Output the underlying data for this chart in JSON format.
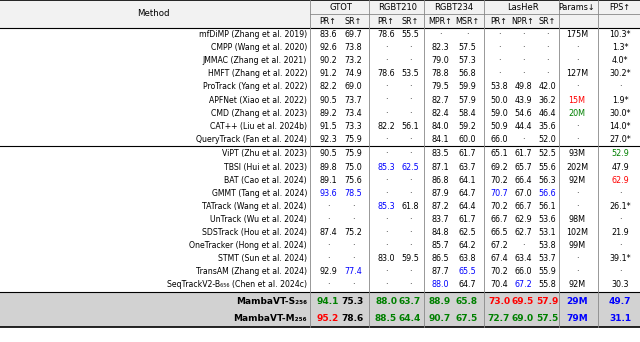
{
  "rows_group1": [
    [
      "mfDiMP (Zhang et al. 2019)",
      "83.6",
      "69.7",
      "78.6",
      "55.5",
      "-",
      "-",
      "-",
      "-",
      "-",
      "175M",
      "10.3*"
    ],
    [
      "CMPP (Wang et al. 2020)",
      "92.6",
      "73.8",
      "-",
      "-",
      "82.3",
      "57.5",
      "-",
      "-",
      "-",
      "-",
      "1.3*"
    ],
    [
      "JMMAC (Zhang et al. 2021)",
      "90.2",
      "73.2",
      "-",
      "-",
      "79.0",
      "57.3",
      "-",
      "-",
      "-",
      "-",
      "4.0*"
    ],
    [
      "HMFT (Zhang et al. 2022)",
      "91.2",
      "74.9",
      "78.6",
      "53.5",
      "78.8",
      "56.8",
      "-",
      "-",
      "-",
      "127M",
      "30.2*"
    ],
    [
      "ProTrack (Yang et al. 2022)",
      "82.2",
      "69.0",
      "-",
      "-",
      "79.5",
      "59.9",
      "53.8",
      "49.8",
      "42.0",
      "-",
      "-"
    ],
    [
      "APFNet (Xiao et al. 2022)",
      "90.5",
      "73.7",
      "-",
      "-",
      "82.7",
      "57.9",
      "50.0",
      "43.9",
      "36.2",
      "15M",
      "1.9*"
    ],
    [
      "CMD (Zhang et al. 2023)",
      "89.2",
      "73.4",
      "-",
      "-",
      "82.4",
      "58.4",
      "59.0",
      "54.6",
      "46.4",
      "20M",
      "30.0*"
    ],
    [
      "CAT++ (Liu et al. 2024b)",
      "91.5",
      "73.3",
      "82.2",
      "56.1",
      "84.0",
      "59.2",
      "50.9",
      "44.4",
      "35.6",
      "-",
      "14.0*"
    ],
    [
      "QueryTrack (Fan et al. 2024)",
      "92.3",
      "75.9",
      "-",
      "-",
      "84.1",
      "60.0",
      "66.0",
      "-",
      "52.0",
      "-",
      "27.0*"
    ]
  ],
  "rows_group2": [
    [
      "ViPT (Zhu et al. 2023)",
      "90.5",
      "75.9",
      "-",
      "-",
      "83.5",
      "61.7",
      "65.1",
      "61.7",
      "52.5",
      "93M",
      "52.9"
    ],
    [
      "TBSI (Hui et al. 2023)",
      "89.8",
      "75.0",
      "85.3",
      "62.5",
      "87.1",
      "63.7",
      "69.2",
      "65.7",
      "55.6",
      "202M",
      "47.9"
    ],
    [
      "BAT (Cao et al. 2024)",
      "89.1",
      "75.6",
      "-",
      "-",
      "86.8",
      "64.1",
      "70.2",
      "66.4",
      "56.3",
      "92M",
      "62.9"
    ],
    [
      "GMMT (Tang et al. 2024)",
      "93.6",
      "78.5",
      "-",
      "-",
      "87.9",
      "64.7",
      "70.7",
      "67.0",
      "56.6",
      "-",
      "-"
    ],
    [
      "TATrack (Wang et al. 2024)",
      "-",
      "-",
      "85.3",
      "61.8",
      "87.2",
      "64.4",
      "70.2",
      "66.7",
      "56.1",
      "-",
      "26.1*"
    ],
    [
      "UnTrack (Wu et al. 2024)",
      "-",
      "-",
      "-",
      "-",
      "83.7",
      "61.7",
      "66.7",
      "62.9",
      "53.6",
      "98M",
      "-"
    ],
    [
      "SDSTrack (Hou et al. 2024)",
      "87.4",
      "75.2",
      "-",
      "-",
      "84.8",
      "62.5",
      "66.5",
      "62.7",
      "53.1",
      "102M",
      "21.9"
    ],
    [
      "OneTracker (Hong et al. 2024)",
      "-",
      "-",
      "-",
      "-",
      "85.7",
      "64.2",
      "67.2",
      "-",
      "53.8",
      "99M",
      "-"
    ],
    [
      "STMT (Sun et al. 2024)",
      "-",
      "-",
      "83.0",
      "59.5",
      "86.5",
      "63.8",
      "67.4",
      "63.4",
      "53.7",
      "-",
      "39.1*"
    ],
    [
      "TransAM (Zhang et al. 2024)",
      "92.9",
      "77.4",
      "-",
      "-",
      "87.7",
      "65.5",
      "70.2",
      "66.0",
      "55.9",
      "-",
      "-"
    ],
    [
      "SeqTrackV2-B₆₅₆ (Chen et al. 2024c)",
      "-",
      "-",
      "-",
      "-",
      "88.0",
      "64.7",
      "70.4",
      "67.2",
      "55.8",
      "92M",
      "30.3"
    ]
  ],
  "rows_mamba": [
    [
      "MambaVT-S₂₅₆",
      "94.1",
      "75.3",
      "88.0",
      "63.7",
      "88.9",
      "65.8",
      "73.0",
      "69.5",
      "57.9",
      "29M",
      "49.7"
    ],
    [
      "MambaVT-M₂₅₆",
      "95.2",
      "78.6",
      "88.5",
      "64.4",
      "90.7",
      "67.5",
      "72.7",
      "69.0",
      "57.5",
      "79M",
      "31.1"
    ]
  ],
  "special_cells_g1": {
    "5_params": "red",
    "6_params": "green"
  },
  "special_cells_g2": {
    "1_rgbt210_pr": "blue",
    "1_rgbt210_sr": "blue",
    "3_gtot_pr": "blue",
    "3_gtot_sr": "blue",
    "3_lasher_pr": "blue",
    "3_lasher_sr": "blue",
    "4_rgbt210_pr": "blue",
    "9_gtot_sr": "blue",
    "9_rgbt234_msr": "blue",
    "10_rgbt234_mpr": "blue",
    "10_lasher_npr": "blue",
    "0_fps": "green",
    "2_fps": "red"
  },
  "mamba_s_colors": {
    "gtot_pr": "green",
    "gtot_sr": "black",
    "rgbt210_pr": "green",
    "rgbt210_sr": "green",
    "rgbt234_mpr": "green",
    "rgbt234_msr": "green",
    "lasher_pr": "red",
    "lasher_npr": "red",
    "lasher_sr": "red",
    "params": "blue",
    "fps": "blue"
  },
  "mamba_m_colors": {
    "gtot_pr": "red",
    "gtot_sr": "black",
    "rgbt210_pr": "green",
    "rgbt210_sr": "green",
    "rgbt234_mpr": "green",
    "rgbt234_msr": "green",
    "lasher_pr": "green",
    "lasher_npr": "green",
    "lasher_sr": "green",
    "params": "blue",
    "fps": "blue"
  }
}
